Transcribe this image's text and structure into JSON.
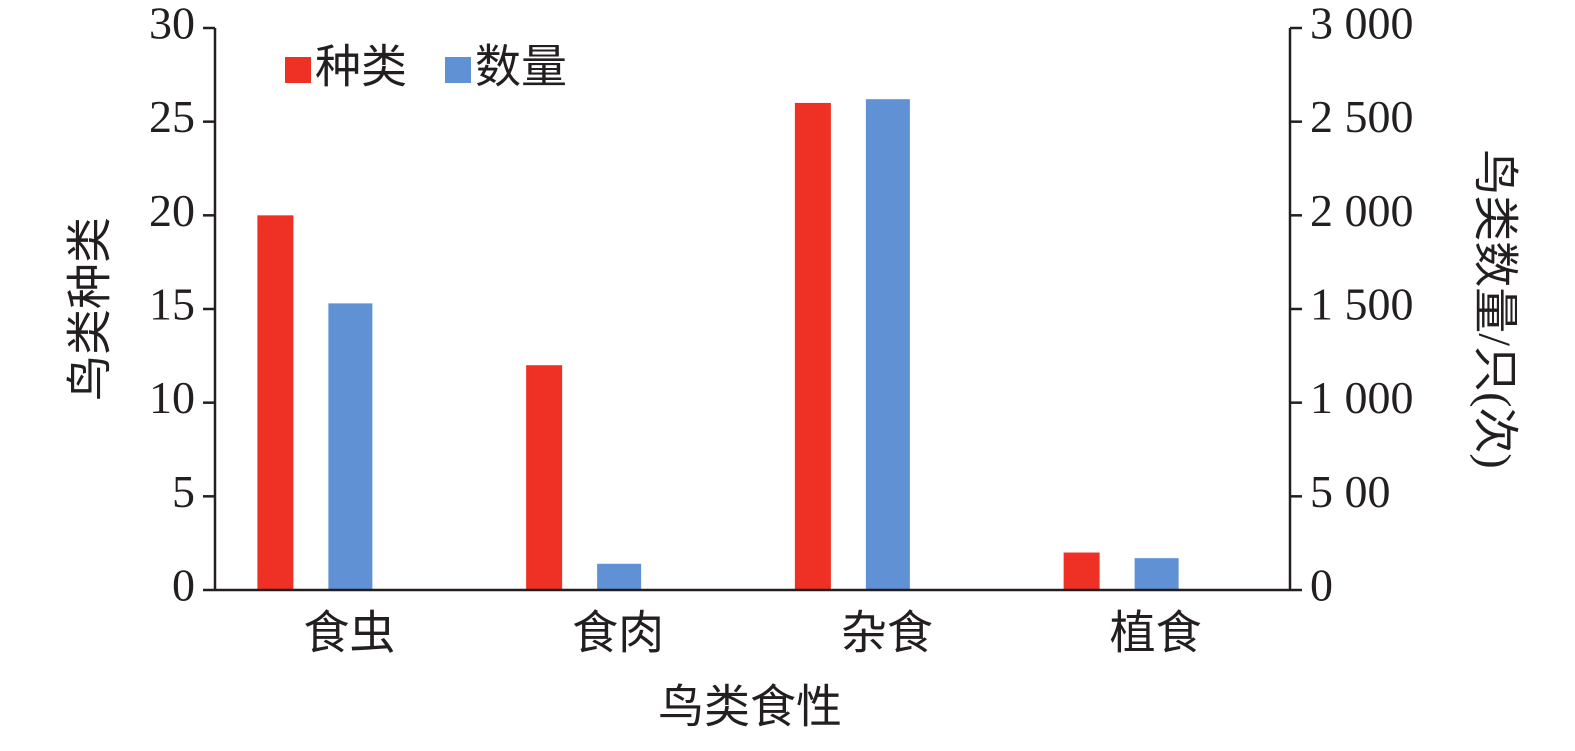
{
  "chart_data": {
    "type": "bar",
    "x_label": "鸟类食性",
    "y_label": "鸟类种类",
    "y2_label": "鸟类数量/只(次)",
    "categories": [
      "食虫",
      "食肉",
      "杂食",
      "植食"
    ],
    "series": [
      {
        "name": "种类",
        "color": "#ee3124",
        "values": [
          20,
          12,
          26,
          2
        ]
      },
      {
        "name": "数量",
        "color": "#5f91d4",
        "axis": "y2",
        "values": [
          1530,
          140,
          2620,
          170
        ]
      }
    ],
    "ylim": [
      0,
      30
    ],
    "yticks": [
      0,
      5,
      10,
      15,
      20,
      25,
      30
    ],
    "y2lim": [
      0,
      3000
    ],
    "y2ticks": [
      0,
      {
        "value": 500,
        "label": "5 00"
      },
      {
        "value": 1000,
        "label": "1 000"
      },
      {
        "value": 1500,
        "label": "1 500"
      },
      {
        "value": 2000,
        "label": "2 000"
      },
      {
        "value": 2500,
        "label": "2 500"
      },
      {
        "value": 3000,
        "label": "3 000"
      }
    ],
    "legend": "top-left",
    "grid": false
  }
}
